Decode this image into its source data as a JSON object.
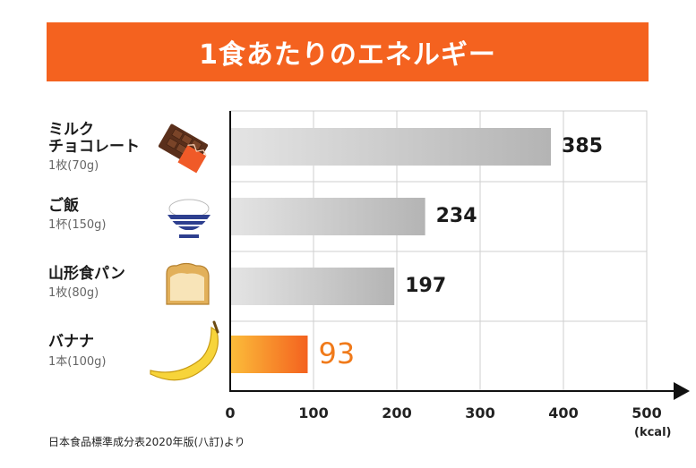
{
  "title": "1食あたりのエネルギー",
  "source_note": "日本食品標準成分表2020年版(八訂)より",
  "colors": {
    "banner": "#f4621f",
    "bar_gray_light": "#e4e4e4",
    "bar_gray_dark": "#b4b4b4",
    "bar_orange_light": "#fbbd3a",
    "bar_orange_dark": "#f4621f",
    "highlight_text": "#f07a1a"
  },
  "chart_data": {
    "type": "bar",
    "orientation": "horizontal",
    "categories": [
      {
        "name_lines": [
          "ミルク",
          "チョコレート"
        ],
        "portion": "1枚(70g)",
        "icon": "chocolate-icon"
      },
      {
        "name_lines": [
          "ご飯"
        ],
        "portion": "1杯(150g)",
        "icon": "rice-bowl-icon"
      },
      {
        "name_lines": [
          "山形食パン"
        ],
        "portion": "1枚(80g)",
        "icon": "bread-icon"
      },
      {
        "name_lines": [
          "バナナ"
        ],
        "portion": "1本(100g)",
        "icon": "banana-icon"
      }
    ],
    "values": [
      385,
      234,
      197,
      93
    ],
    "highlight_index": 3,
    "xlabel": "(kcal)",
    "xlim": [
      0,
      500
    ],
    "xticks": [
      0,
      100,
      200,
      300,
      400,
      500
    ],
    "grid": true
  }
}
